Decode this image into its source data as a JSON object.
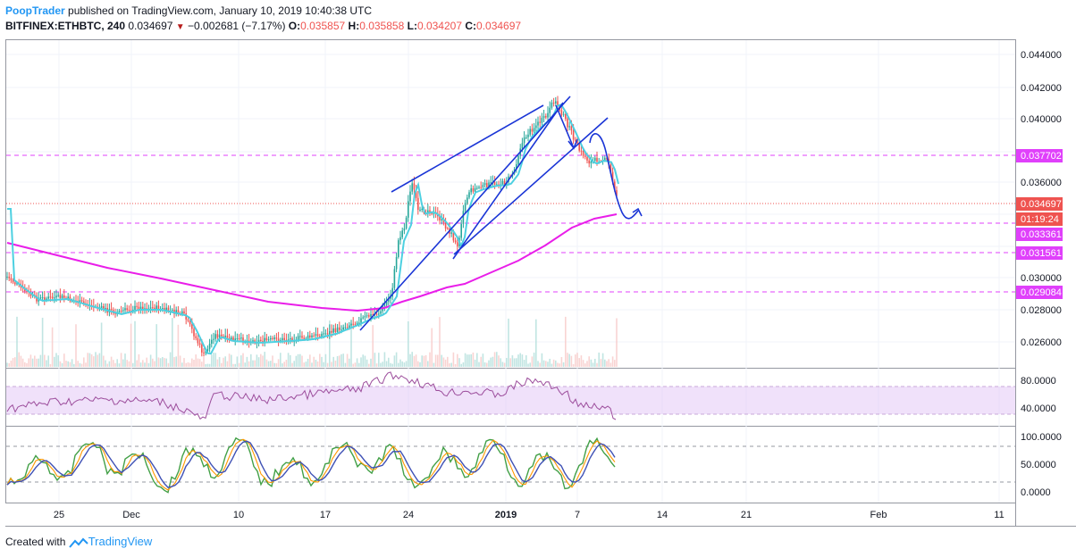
{
  "header": {
    "author": "PoopTrader",
    "published_text": " published on TradingView.com, January 10, 2019 10:40:38 UTC",
    "symbol": "BITFINEX:ETHBTC, 240",
    "last": "0.034697",
    "change": "−0.002681 (−7.17%)",
    "open_label": "O:",
    "open": "0.035857",
    "high_label": "H:",
    "high": "0.035858",
    "low_label": "L:",
    "low": "0.034207",
    "close_label": "C:",
    "close": "0.034697"
  },
  "price_axis": {
    "ticks": [
      "0.044000",
      "0.042000",
      "0.040000",
      "0.036000",
      "0.030000",
      "0.028000",
      "0.026000"
    ],
    "badges": [
      {
        "value": "0.037702",
        "kind": "level",
        "color": "#e040fb"
      },
      {
        "value": "0.034697",
        "kind": "last",
        "color": "#ef5350"
      },
      {
        "value": "01:19:24",
        "kind": "countdown",
        "color": "#ef5350"
      },
      {
        "value": "0.033361",
        "kind": "level",
        "color": "#e040fb"
      },
      {
        "value": "0.031561",
        "kind": "level",
        "color": "#e040fb"
      },
      {
        "value": "0.029084",
        "kind": "level",
        "color": "#e040fb"
      }
    ]
  },
  "rsi_axis": {
    "ticks": [
      "80.0000",
      "40.0000"
    ]
  },
  "stoch_axis": {
    "ticks": [
      "100.0000",
      "50.0000",
      "0.0000"
    ]
  },
  "time_axis": {
    "labels": [
      {
        "text": "25",
        "bold": false
      },
      {
        "text": "Dec",
        "bold": false
      },
      {
        "text": "10",
        "bold": false
      },
      {
        "text": "17",
        "bold": false
      },
      {
        "text": "24",
        "bold": false
      },
      {
        "text": "2019",
        "bold": true
      },
      {
        "text": "7",
        "bold": false
      },
      {
        "text": "14",
        "bold": false
      },
      {
        "text": "21",
        "bold": false
      },
      {
        "text": "Feb",
        "bold": false
      },
      {
        "text": "11",
        "bold": false
      }
    ]
  },
  "colors": {
    "up": "#26a69a",
    "down": "#ef5350",
    "ma_long": "#e91ee9",
    "ma_short": "#4dd0e1",
    "rsi": "#9c4d9c",
    "rsi_band": "#e1c4f5",
    "stoch_k": "#43a047",
    "stoch_d": "#3f51b5",
    "stoch_slow": "#ff9800",
    "drawing": "#1a35d6",
    "level_line": "#e040fb"
  },
  "footer": {
    "created_with": "Created with",
    "brand": "TradingView"
  }
}
